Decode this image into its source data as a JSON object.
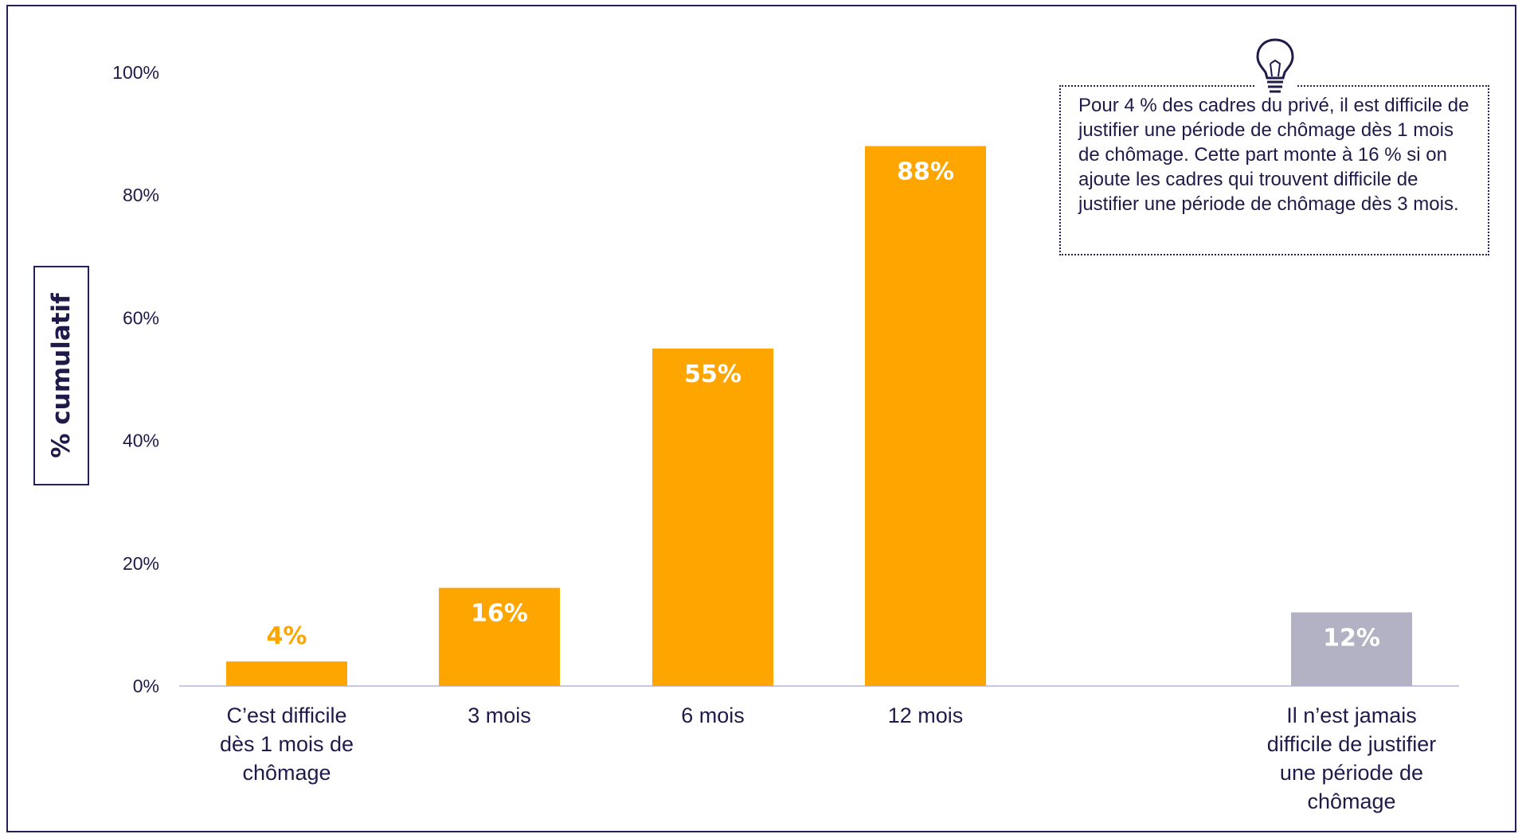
{
  "chart_data": {
    "type": "bar",
    "ylabel": "% cumulatif",
    "ylim": [
      0,
      100
    ],
    "yticks": [
      "0%",
      "20%",
      "40%",
      "60%",
      "80%",
      "100%"
    ],
    "categories": [
      "C’est difficile dès 1 mois de chômage",
      "3 mois",
      "6 mois",
      "12 mois",
      "Il n’est jamais difficile de justifier une période de chômage"
    ],
    "category_lines": [
      [
        "C’est difficile",
        "dès 1 mois de",
        "chômage"
      ],
      [
        "3 mois"
      ],
      [
        "6 mois"
      ],
      [
        "12 mois"
      ],
      [
        "Il n’est jamais",
        "difficile de justifier",
        "une période de",
        "chômage"
      ]
    ],
    "values": [
      4,
      16,
      55,
      88,
      12
    ],
    "data_labels": [
      "4%",
      "16%",
      "55%",
      "88%",
      "12%"
    ],
    "colors": [
      "#ffa500",
      "#ffa500",
      "#ffa500",
      "#ffa500",
      "#b3b2c4"
    ],
    "grid": false,
    "legend": "none"
  },
  "note": {
    "icon": "lightbulb-icon",
    "text": "Pour 4 % des cadres du privé, il est difficile de justifier une période de chômage dès 1 mois de chômage. Cette part monte à 16 % si on ajoute les cadres qui trouvent difficile de justifier une période de chômage dès 3 mois."
  }
}
